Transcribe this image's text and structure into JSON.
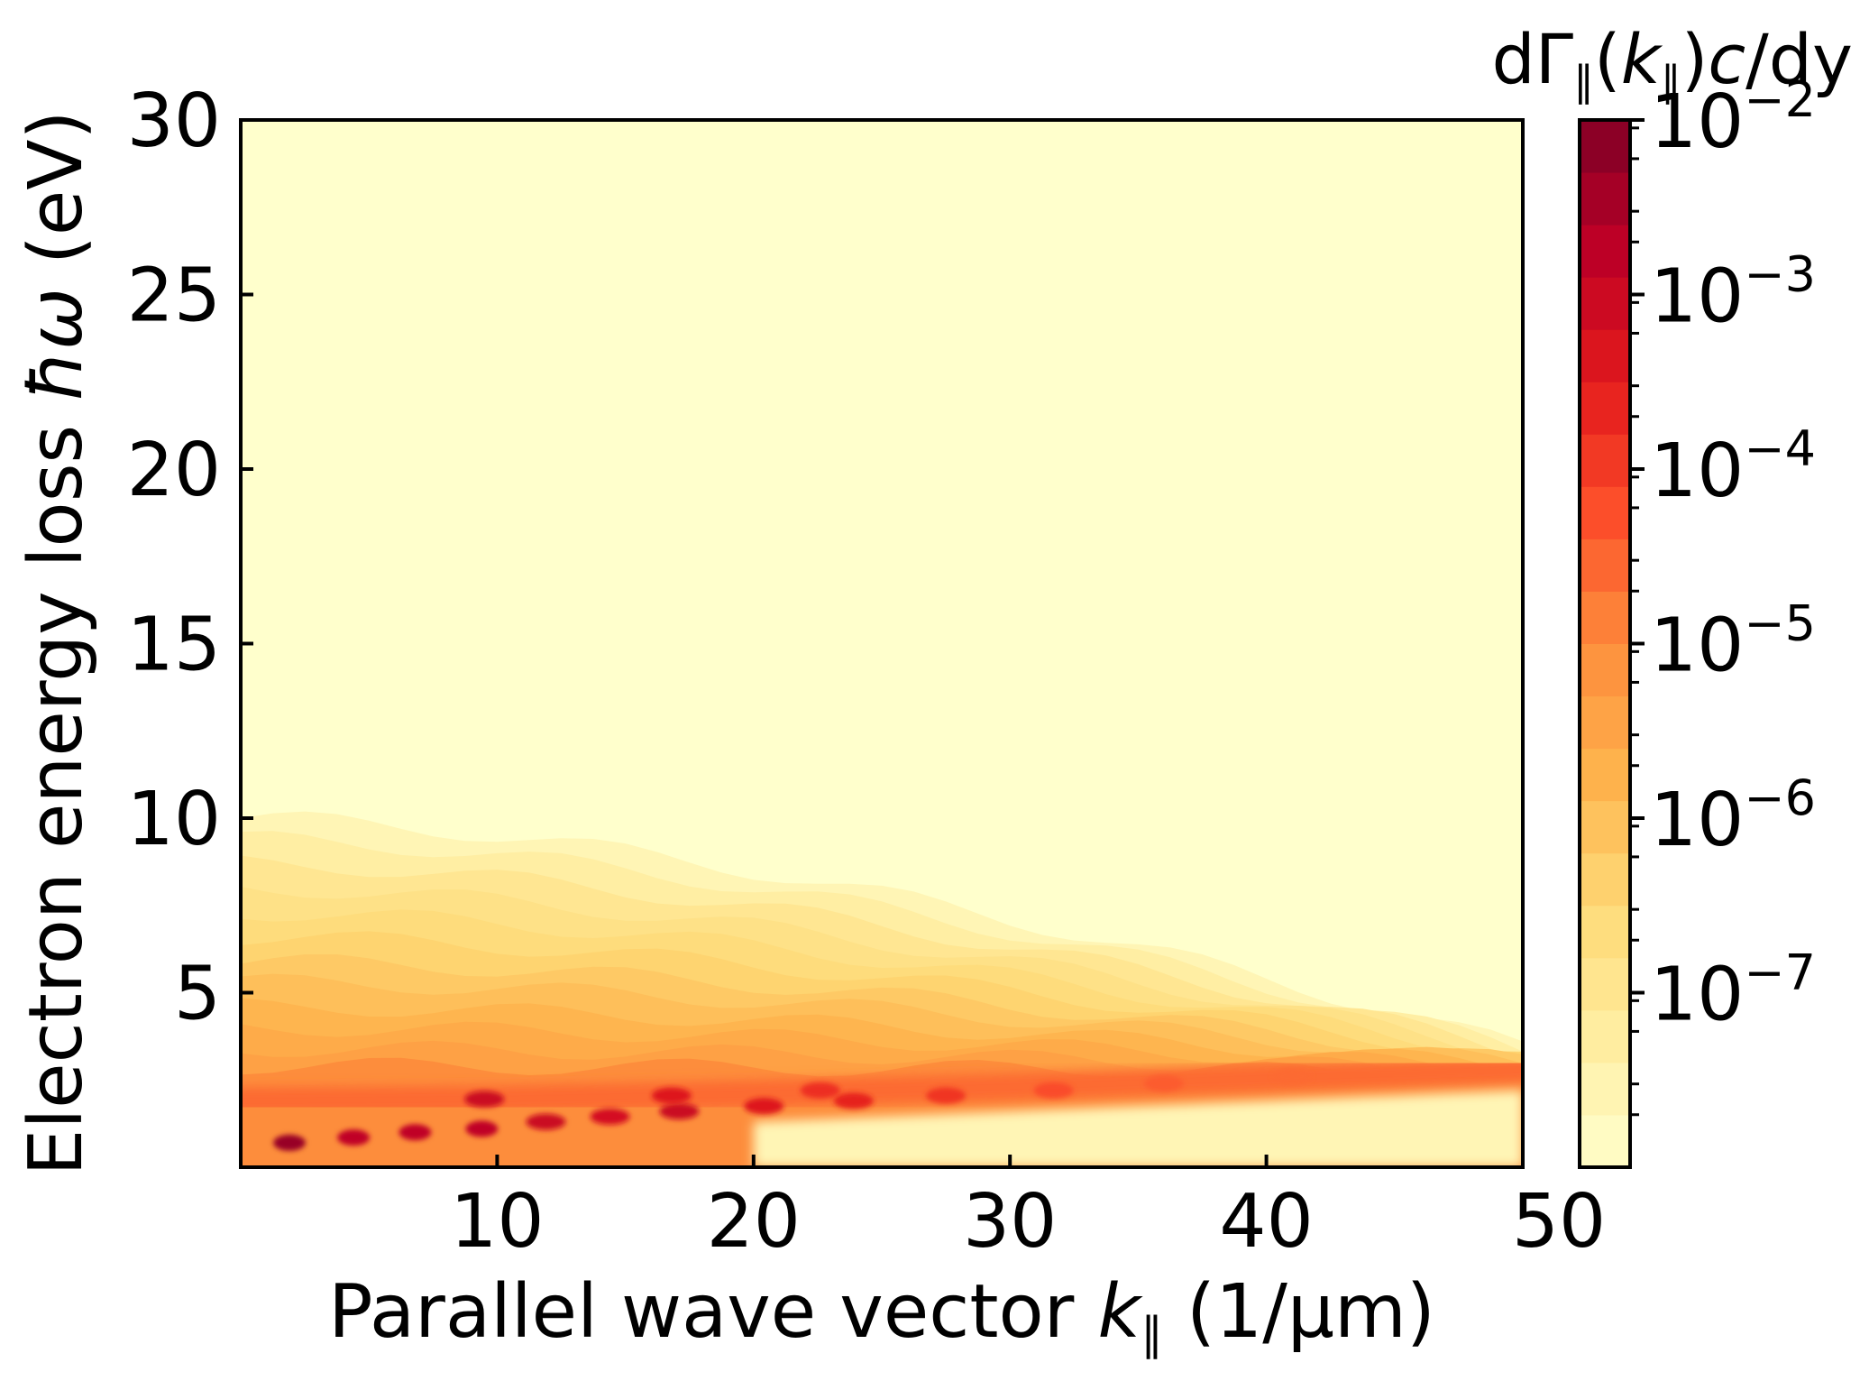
{
  "chart_data": {
    "type": "heatmap",
    "title": "",
    "xlabel": "Parallel wave vector k_∥ (1/μm)",
    "xlabel_parts": {
      "pre": "Parallel wave vector ",
      "var": "k",
      "sub": "∥",
      "post": " (1/μm)"
    },
    "ylabel": "Electron energy loss ħω (eV)",
    "ylabel_parts": {
      "pre": "Electron energy loss ",
      "var": "ħω",
      "post": " (eV)"
    },
    "xlim": [
      0,
      50
    ],
    "ylim": [
      0,
      30
    ],
    "xticks": [
      10,
      20,
      30,
      40,
      50
    ],
    "xtick_labels": [
      "10",
      "20",
      "30",
      "40",
      "50"
    ],
    "yticks": [
      5,
      10,
      15,
      20,
      25,
      30
    ],
    "ytick_labels": [
      "5",
      "10",
      "15",
      "20",
      "25",
      "30"
    ],
    "colorbar": {
      "label": "dΓ∥(k∥)c/dy",
      "label_parts": {
        "pre": "dΓ",
        "sub1": "∥",
        "mid": "(",
        "var": "k",
        "sub2": "∥",
        "post": ")",
        "var2": "c",
        "tail": "/dy"
      },
      "scale": "log",
      "range": [
        1e-08,
        0.01
      ],
      "colormap": "YlOrRd",
      "ticks": [
        0.01,
        0.001,
        0.0001,
        1e-05,
        1e-06,
        1e-07
      ],
      "tick_base": "10",
      "tick_exponents": [
        "−2",
        "−3",
        "−4",
        "−5",
        "−6",
        "−7"
      ]
    },
    "bands": [
      {
        "y": 10.0,
        "log_value": -7.6
      },
      {
        "y": 9.4,
        "log_value": -7.3
      },
      {
        "y": 8.7,
        "log_value": -7.0
      },
      {
        "y": 8.0,
        "log_value": -6.8
      },
      {
        "y": 7.3,
        "log_value": -6.6
      },
      {
        "y": 6.6,
        "log_value": -6.4
      },
      {
        "y": 5.9,
        "log_value": -6.2
      },
      {
        "y": 5.3,
        "log_value": -6.0
      },
      {
        "y": 4.6,
        "log_value": -5.8
      },
      {
        "y": 4.0,
        "log_value": -5.6
      },
      {
        "y": 3.4,
        "log_value": -5.4
      },
      {
        "y": 2.9,
        "log_value": -5.0
      }
    ],
    "dispersion_ridge": [
      {
        "x": 0,
        "y": 1.9
      },
      {
        "x": 10,
        "y": 1.95
      },
      {
        "x": 20,
        "y": 2.1
      },
      {
        "x": 30,
        "y": 2.3
      },
      {
        "x": 40,
        "y": 2.55
      },
      {
        "x": 50,
        "y": 2.8
      }
    ],
    "peaks": [
      {
        "x": 1.9,
        "y": 0.7,
        "log_value": -2.3
      },
      {
        "x": 4.4,
        "y": 0.85,
        "log_value": -2.8
      },
      {
        "x": 6.8,
        "y": 1.0,
        "log_value": -2.8
      },
      {
        "x": 9.4,
        "y": 1.1,
        "log_value": -2.8
      },
      {
        "x": 11.9,
        "y": 1.3,
        "log_value": -3.0
      },
      {
        "x": 14.4,
        "y": 1.45,
        "log_value": -3.2
      },
      {
        "x": 17.1,
        "y": 1.6,
        "log_value": -3.0
      },
      {
        "x": 20.4,
        "y": 1.75,
        "log_value": -3.4
      },
      {
        "x": 23.9,
        "y": 1.9,
        "log_value": -3.6
      },
      {
        "x": 9.5,
        "y": 1.95,
        "log_value": -3.0
      },
      {
        "x": 16.8,
        "y": 2.05,
        "log_value": -3.4
      },
      {
        "x": 22.6,
        "y": 2.2,
        "log_value": -3.8
      },
      {
        "x": 27.5,
        "y": 2.05,
        "log_value": -3.9
      },
      {
        "x": 31.7,
        "y": 2.2,
        "log_value": -4.2
      },
      {
        "x": 36.0,
        "y": 2.4,
        "log_value": -4.4
      },
      {
        "x": 41.0,
        "y": 2.6,
        "log_value": -4.6
      }
    ]
  }
}
